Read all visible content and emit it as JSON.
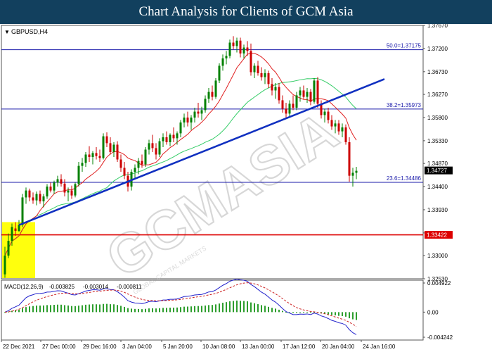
{
  "banner": {
    "title": "Chart Analysis for Clients of GCM Asia"
  },
  "watermark": {
    "text": "GCMASIA",
    "sub": "GLOBAL CAPITAL MARKETS"
  },
  "chart_data": {
    "type": "candlestick",
    "symbol": "GBPUSD,H4",
    "colors": {
      "up": "#008000",
      "down": "#cc0000",
      "ma_fast": "#e02020",
      "ma_slow": "#33cc66",
      "trendline": "#1030c0",
      "fib": "#1a1aaa",
      "support": "#dd0000",
      "zone": "#ffff00",
      "macd_signal": "#cc2222",
      "macd_line": "#2222cc",
      "macd_hist": "#2e9e2e"
    },
    "y_ticks": [
      "1.37670",
      "1.37200",
      "1.36730",
      "1.36270",
      "1.35800",
      "1.35330",
      "1.34870",
      "1.34400",
      "1.33930",
      "1.33460",
      "1.33000",
      "1.32530"
    ],
    "ylim": [
      1.3253,
      1.3767
    ],
    "x_ticks": [
      "22 Dec 2021",
      "27 Dec 00:00",
      "29 Dec 16:00",
      "3 Jan 04:00",
      "5 Jan 20:00",
      "10 Jan 08:00",
      "13 Jan 00:00",
      "17 Jan 12:00",
      "20 Jan 04:00",
      "24 Jan 16:00"
    ],
    "fib_levels": [
      {
        "label": "50.0=1.37175",
        "value": 1.37175
      },
      {
        "label": "38.2=1.35973",
        "value": 1.35973
      },
      {
        "label": "23.6=1.34486",
        "value": 1.34486
      }
    ],
    "current_price": "1.34727",
    "support_price": "1.33422",
    "trendline": {
      "start_bar": 4,
      "start_price": 1.3362,
      "end_bar": 108,
      "end_price": 1.3658
    },
    "highlight_zone": {
      "from_bar": 0,
      "to_bar": 8,
      "top": 1.3368,
      "bottom": 1.3253
    },
    "candles": [
      [
        1.3262,
        1.3318,
        1.3255,
        1.33
      ],
      [
        1.33,
        1.3345,
        1.3295,
        1.333
      ],
      [
        1.333,
        1.3365,
        1.332,
        1.3358
      ],
      [
        1.3355,
        1.3368,
        1.334,
        1.335
      ],
      [
        1.335,
        1.3372,
        1.3348,
        1.3362
      ],
      [
        1.3362,
        1.3425,
        1.3358,
        1.3418
      ],
      [
        1.3418,
        1.3438,
        1.3405,
        1.3432
      ],
      [
        1.3432,
        1.3436,
        1.341,
        1.3418
      ],
      [
        1.3418,
        1.3428,
        1.3405,
        1.3412
      ],
      [
        1.3412,
        1.343,
        1.3402,
        1.3425
      ],
      [
        1.3425,
        1.3432,
        1.3405,
        1.341
      ],
      [
        1.341,
        1.3425,
        1.3398,
        1.342
      ],
      [
        1.342,
        1.3445,
        1.3415,
        1.344
      ],
      [
        1.344,
        1.3448,
        1.3428,
        1.3432
      ],
      [
        1.3432,
        1.3452,
        1.3425,
        1.3448
      ],
      [
        1.3448,
        1.3462,
        1.344,
        1.3455
      ],
      [
        1.3455,
        1.3465,
        1.344,
        1.3446
      ],
      [
        1.3446,
        1.3455,
        1.342,
        1.3428
      ],
      [
        1.3428,
        1.3438,
        1.341,
        1.3432
      ],
      [
        1.3432,
        1.3442,
        1.3415,
        1.3422
      ],
      [
        1.3422,
        1.3448,
        1.3418,
        1.3445
      ],
      [
        1.3445,
        1.349,
        1.344,
        1.3482
      ],
      [
        1.3482,
        1.3498,
        1.347,
        1.3488
      ],
      [
        1.3488,
        1.351,
        1.348,
        1.3505
      ],
      [
        1.3505,
        1.3522,
        1.349,
        1.35
      ],
      [
        1.35,
        1.3512,
        1.3485,
        1.3508
      ],
      [
        1.3508,
        1.352,
        1.3495,
        1.3502
      ],
      [
        1.3502,
        1.3515,
        1.349,
        1.3498
      ],
      [
        1.3498,
        1.3548,
        1.3495,
        1.3542
      ],
      [
        1.3542,
        1.355,
        1.352,
        1.3528
      ],
      [
        1.3528,
        1.354,
        1.3505,
        1.351
      ],
      [
        1.351,
        1.353,
        1.35,
        1.3525
      ],
      [
        1.3525,
        1.3532,
        1.349,
        1.3495
      ],
      [
        1.3495,
        1.3505,
        1.347,
        1.3478
      ],
      [
        1.3478,
        1.349,
        1.3455,
        1.3462
      ],
      [
        1.3462,
        1.347,
        1.343,
        1.344
      ],
      [
        1.344,
        1.3475,
        1.3432,
        1.347
      ],
      [
        1.347,
        1.3485,
        1.3455,
        1.3478
      ],
      [
        1.3478,
        1.3498,
        1.3465,
        1.3492
      ],
      [
        1.3492,
        1.3505,
        1.3478,
        1.3485
      ],
      [
        1.3485,
        1.352,
        1.348,
        1.3515
      ],
      [
        1.3515,
        1.3535,
        1.3505,
        1.3528
      ],
      [
        1.3528,
        1.3545,
        1.351,
        1.3518
      ],
      [
        1.3518,
        1.3528,
        1.3495,
        1.3505
      ],
      [
        1.3505,
        1.3538,
        1.35,
        1.3532
      ],
      [
        1.3532,
        1.3548,
        1.352,
        1.354
      ],
      [
        1.354,
        1.3552,
        1.3525,
        1.353
      ],
      [
        1.353,
        1.3548,
        1.3522,
        1.3545
      ],
      [
        1.3545,
        1.356,
        1.353,
        1.3538
      ],
      [
        1.3538,
        1.3552,
        1.3525,
        1.3548
      ],
      [
        1.3548,
        1.3575,
        1.354,
        1.357
      ],
      [
        1.357,
        1.3588,
        1.356,
        1.358
      ],
      [
        1.358,
        1.3592,
        1.3562,
        1.357
      ],
      [
        1.357,
        1.3585,
        1.3555,
        1.358
      ],
      [
        1.358,
        1.36,
        1.357,
        1.3592
      ],
      [
        1.3592,
        1.361,
        1.358,
        1.3588
      ],
      [
        1.3588,
        1.3602,
        1.3575,
        1.3595
      ],
      [
        1.3595,
        1.3625,
        1.359,
        1.3618
      ],
      [
        1.3618,
        1.364,
        1.361,
        1.3632
      ],
      [
        1.3632,
        1.3645,
        1.3615,
        1.3622
      ],
      [
        1.3622,
        1.366,
        1.3618,
        1.3655
      ],
      [
        1.3655,
        1.369,
        1.365,
        1.3685
      ],
      [
        1.3685,
        1.3708,
        1.3675,
        1.37
      ],
      [
        1.37,
        1.3715,
        1.3688,
        1.3705
      ],
      [
        1.3705,
        1.3738,
        1.37,
        1.3732
      ],
      [
        1.3732,
        1.3745,
        1.3718,
        1.3725
      ],
      [
        1.3725,
        1.3742,
        1.3712,
        1.3736
      ],
      [
        1.3736,
        1.3742,
        1.3702,
        1.371
      ],
      [
        1.371,
        1.3728,
        1.37,
        1.3722
      ],
      [
        1.3722,
        1.3735,
        1.3705,
        1.3715
      ],
      [
        1.3715,
        1.373,
        1.3665,
        1.3672
      ],
      [
        1.3672,
        1.369,
        1.366,
        1.3685
      ],
      [
        1.3685,
        1.3695,
        1.3665,
        1.367
      ],
      [
        1.367,
        1.3682,
        1.3655,
        1.3662
      ],
      [
        1.3662,
        1.3678,
        1.3648,
        1.367
      ],
      [
        1.367,
        1.3675,
        1.364,
        1.3648
      ],
      [
        1.3648,
        1.366,
        1.3625,
        1.3635
      ],
      [
        1.3635,
        1.365,
        1.3618,
        1.3642
      ],
      [
        1.3642,
        1.365,
        1.3608,
        1.3615
      ],
      [
        1.3615,
        1.3625,
        1.359,
        1.3598
      ],
      [
        1.3598,
        1.361,
        1.3578,
        1.3588
      ],
      [
        1.3588,
        1.3615,
        1.3582,
        1.3608
      ],
      [
        1.3608,
        1.3625,
        1.3595,
        1.36
      ],
      [
        1.36,
        1.3632,
        1.3595,
        1.3625
      ],
      [
        1.3625,
        1.3642,
        1.3612,
        1.3635
      ],
      [
        1.3635,
        1.3645,
        1.3618,
        1.3622
      ],
      [
        1.3622,
        1.364,
        1.361,
        1.3632
      ],
      [
        1.3632,
        1.3638,
        1.3605,
        1.3612
      ],
      [
        1.3612,
        1.366,
        1.3608,
        1.3655
      ],
      [
        1.3655,
        1.3662,
        1.36,
        1.3608
      ],
      [
        1.3608,
        1.3615,
        1.3578,
        1.3585
      ],
      [
        1.3585,
        1.3598,
        1.357,
        1.3592
      ],
      [
        1.3592,
        1.36,
        1.3568,
        1.3575
      ],
      [
        1.3575,
        1.3585,
        1.3555,
        1.3562
      ],
      [
        1.3562,
        1.3575,
        1.3548,
        1.3568
      ],
      [
        1.3568,
        1.3575,
        1.3545,
        1.3552
      ],
      [
        1.3552,
        1.3568,
        1.354,
        1.356
      ],
      [
        1.356,
        1.3566,
        1.3525,
        1.353
      ],
      [
        1.353,
        1.354,
        1.345,
        1.3462
      ],
      [
        1.3462,
        1.3478,
        1.344,
        1.3468
      ],
      [
        1.3468,
        1.348,
        1.3455,
        1.3472
      ]
    ],
    "macd": {
      "label": "MACD(12,26,9)",
      "values": [
        "-0.003825",
        "-0.003014",
        "-0.000811"
      ],
      "y_ticks": [
        "0.004922",
        "0.00",
        "-0.004242"
      ],
      "ylim": [
        -0.004242,
        0.004922
      ]
    }
  }
}
